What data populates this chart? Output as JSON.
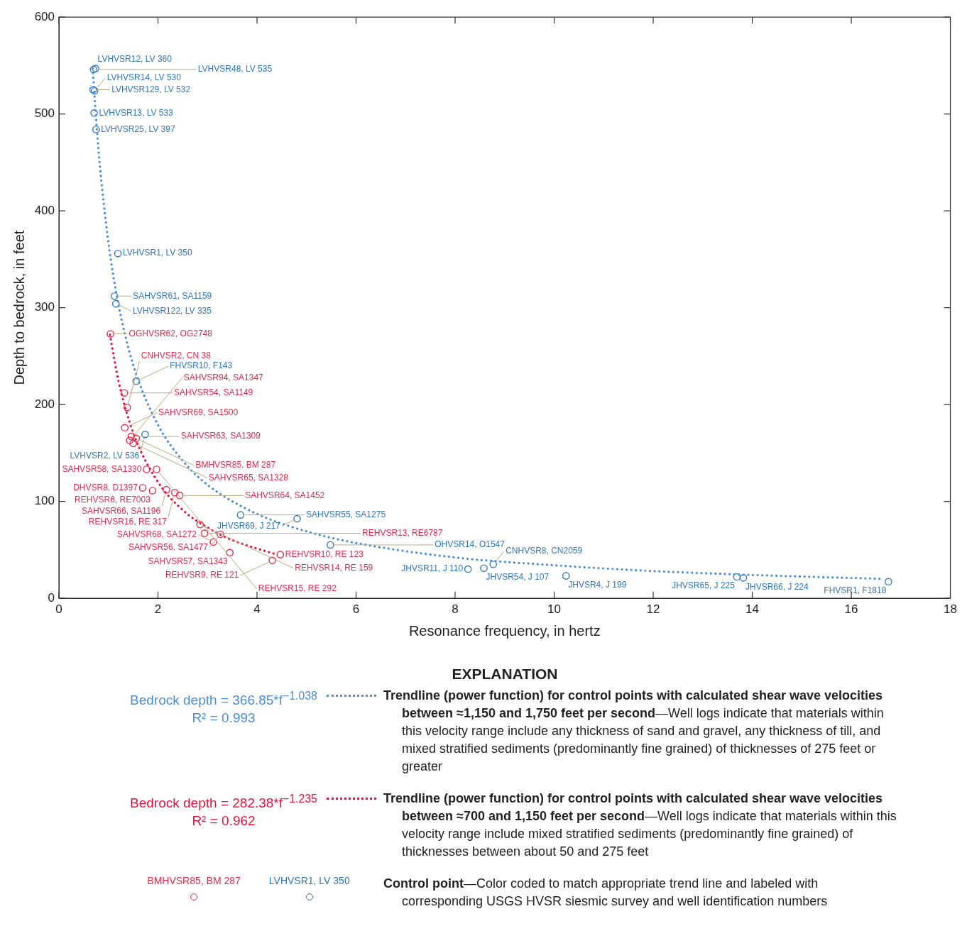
{
  "chart_data": {
    "type": "scatter",
    "xlabel": "Resonance frequency, in hertz",
    "ylabel": "Depth to bedrock, in feet",
    "xlim": [
      0,
      18
    ],
    "xticks": [
      0,
      2,
      4,
      6,
      8,
      10,
      12,
      14,
      16,
      18
    ],
    "ylim": [
      0,
      600
    ],
    "yticks": [
      0,
      100,
      200,
      300,
      400,
      500,
      600
    ],
    "grid": false,
    "marker": "circle",
    "line_style": "dotted",
    "legend": "bottom",
    "legend_title": "EXPLANATION",
    "annotations": [
      "Bedrock depth = 366.85*f$^{−1.038}$",
      "R² = 0.993",
      "Bedrock depth = 282.38*f$^{−1.235}$",
      "R² = 0.962",
      "BMHVSR85, BM 287",
      "LVHVSR1, LV 350",
      "Control point—Color coded to match appropriate trend line and labeled with corresponding USGS HVSR siesmic survey and well identification numbers"
    ],
    "series": [
      {
        "type": "line",
        "marker": "none",
        "name": "Trendline (power function) for control points with calculated shear wave velocities between ≈1,150 and 1,750 feet per second—Well logs indicate that materials within this velocity range include any thickness of sand and gravel, any thickness of till, and mixed stratified sediments (predominantly fine grained) of thicknesses of 275 feet or greater",
        "color": "#4a8fd4",
        "x": [
          0.68,
          0.8,
          1,
          1.2,
          1.5,
          2,
          2.5,
          3,
          4,
          5,
          6,
          8,
          10,
          12,
          14,
          16.6
        ],
        "values": [
          547,
          462,
          367,
          304,
          241,
          179,
          142,
          117,
          87,
          69,
          57,
          42,
          34,
          28,
          24,
          20
        ]
      },
      {
        "type": "line",
        "marker": "none",
        "name": "Trendline (power function) for control points with calculated shear wave velocities between ≈700 and 1,150 feet per second—Well logs indicate that materials within this velocity range include mixed stratified sediments (predominantly fine grained) of thicknesses between about 50 and 275 feet",
        "color": "#e8103a",
        "x": [
          1.03,
          1.2,
          1.5,
          2,
          2.5,
          3,
          3.5,
          4.4
        ],
        "values": [
          272,
          225,
          171,
          120,
          91,
          73,
          60,
          45
        ]
      },
      {
        "color": "#e5294f",
        "x": [
          1.04,
          1.32,
          1.38,
          1.33,
          1.46,
          1.56,
          1.43,
          1.5,
          1.77,
          1.97,
          1.69,
          1.89,
          2.17,
          2.34,
          2.44,
          2.85,
          2.94,
          3.26,
          3.12,
          3.45,
          4.31,
          4.47
        ],
        "values": [
          273,
          212,
          197,
          176,
          167,
          165,
          163,
          160,
          133,
          133,
          114,
          111,
          112,
          109,
          106,
          76,
          67,
          66,
          58,
          47,
          39,
          45
        ],
        "value_labels": [
          "OGHVSR62, OG2748",
          "SAHVSR54, SA1149",
          "CNHVSR2, CN 38",
          "SAHVSR69, SA1500",
          "SAHVSR63, SA1309",
          "BMHVSR85, BM 287",
          "SAHVSR94, SA1347",
          "SAHVSR65, SA1328",
          "SAHVSR58, SA1330",
          "REHVSR15, RE 292",
          "DHVSR8, D1397",
          "REHVSR6, RE7003",
          "SAHVSR66, SA1196",
          "REHVSR16, RE 317",
          "SAHVSR64, SA1452",
          "REHVSR14, RE 159",
          "REHVSR13, RE6787",
          "SAHVSR56, SA1477",
          "SAHVSR68, SA1272",
          "SAHVSR57, SA1343",
          "REHVSR9, RE 121",
          "REHVSR10, RE 123"
        ]
      },
      {
        "color": "#2f76bd",
        "x": [
          0.74,
          0.7,
          0.69,
          0.72,
          0.71,
          0.75,
          1.19,
          1.12,
          1.15,
          1.56,
          1.74,
          3.67,
          4.81,
          5.48,
          8.26,
          8.58,
          8.77,
          10.24,
          13.69,
          13.82,
          16.75
        ],
        "values": [
          547,
          546,
          525,
          524,
          501,
          484,
          356,
          312,
          304,
          224,
          169,
          86,
          82,
          55,
          30,
          31,
          35,
          23,
          22,
          21,
          17
        ],
        "value_labels": [
          "LVHVSR12, LV 360",
          "LVHVSR48, LV 535",
          "LVHVSR129, LV 532",
          "LVHVSR14, LV 530",
          "LVHVSR13, LV 533",
          "LVHVSR25, LV 397",
          "LVHVSR1, LV 350",
          "SAHVSR61, SA1159",
          "LVHVSR122, LV 335",
          "FHVSR10, F143",
          "LVHVSR2, LV 536",
          "SAHVSR55, SA1275",
          "JHVSR69, J 217",
          "OHVSR14, O1547",
          "JHVSR11, J 110",
          "JHVSR54, J 107",
          "CNHVSR8, CN2059",
          "JHVSR4, J 199",
          "JHVSR65, J 225",
          "JHVSR66, J 224",
          "FHVSR1, F1818"
        ]
      }
    ]
  }
}
